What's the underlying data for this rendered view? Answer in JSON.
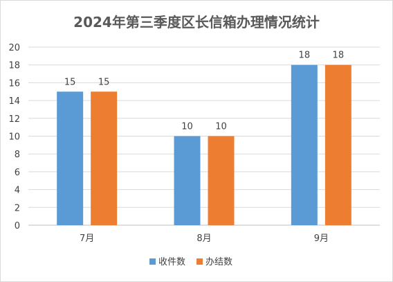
{
  "chart_data": {
    "type": "bar",
    "title": "2024年第三季度区长信箱办理情况统计",
    "categories": [
      "7月",
      "8月",
      "9月"
    ],
    "series": [
      {
        "name": "收件数",
        "values": [
          15,
          10,
          18
        ],
        "color": "#5b9bd5"
      },
      {
        "name": "办结数",
        "values": [
          15,
          10,
          18
        ],
        "color": "#ed7d31"
      }
    ],
    "ylim": [
      0,
      20
    ],
    "yticks": [
      0,
      2,
      4,
      6,
      8,
      10,
      12,
      14,
      16,
      18,
      20
    ],
    "grid": true,
    "legend_position": "bottom",
    "data_labels": true
  }
}
